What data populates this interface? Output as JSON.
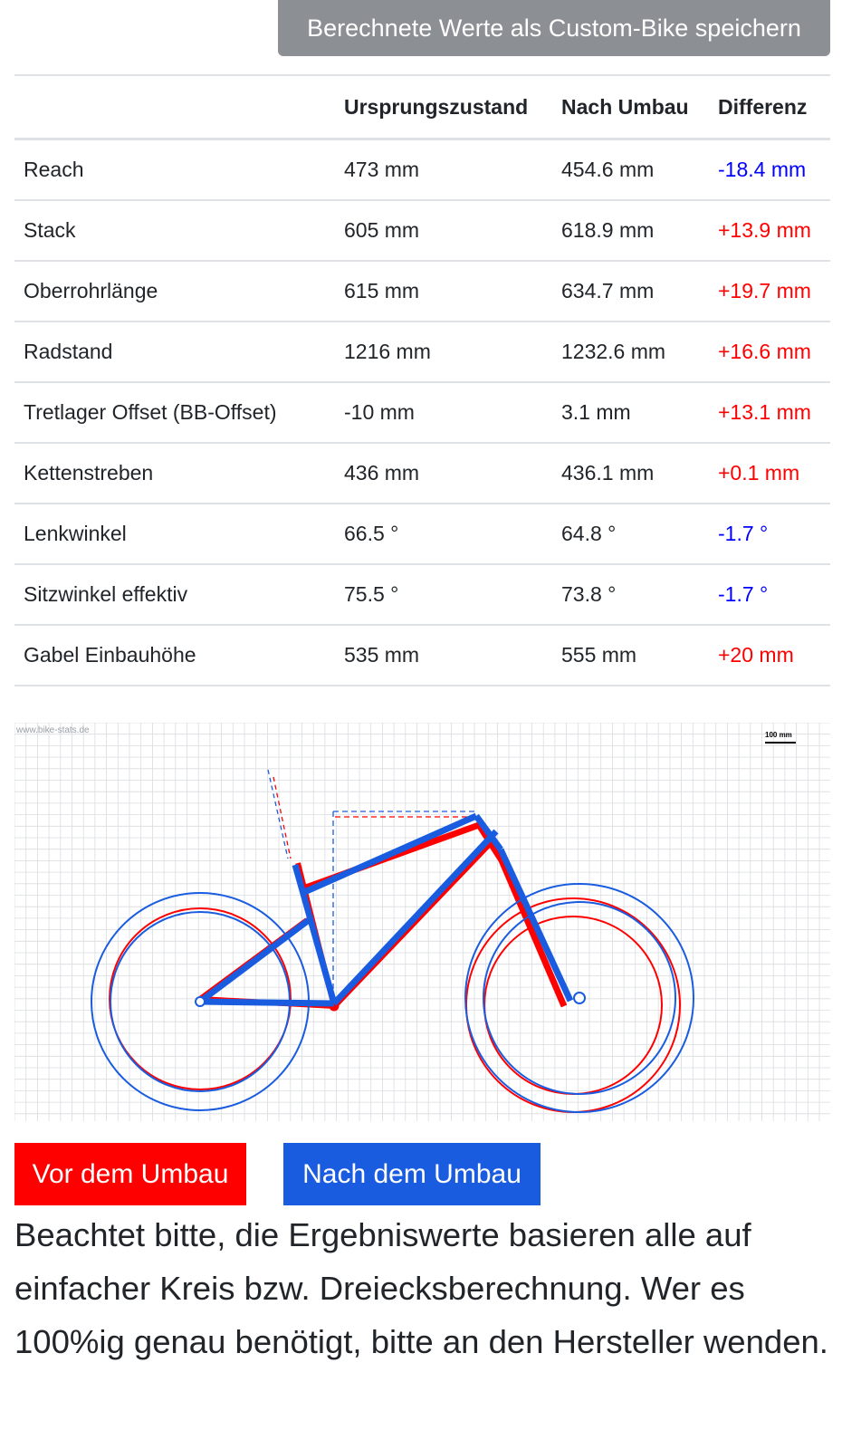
{
  "save_button": "Berechnete Werte als Custom-Bike speichern",
  "table": {
    "headers": [
      "",
      "Ursprungszustand",
      "Nach Umbau",
      "Differenz"
    ],
    "rows": [
      {
        "label": "Reach",
        "before": "473 mm",
        "after": "454.6 mm",
        "diff": "-18.4 mm",
        "sign": "neg"
      },
      {
        "label": "Stack",
        "before": "605 mm",
        "after": "618.9 mm",
        "diff": "+13.9 mm",
        "sign": "pos"
      },
      {
        "label": "Oberrohrlänge",
        "before": "615 mm",
        "after": "634.7 mm",
        "diff": "+19.7 mm",
        "sign": "pos"
      },
      {
        "label": "Radstand",
        "before": "1216 mm",
        "after": "1232.6 mm",
        "diff": "+16.6 mm",
        "sign": "pos"
      },
      {
        "label": "Tretlager Offset (BB-Offset)",
        "before": "-10 mm",
        "after": "3.1 mm",
        "diff": "+13.1 mm",
        "sign": "pos"
      },
      {
        "label": "Kettenstreben",
        "before": "436 mm",
        "after": "436.1 mm",
        "diff": "+0.1 mm",
        "sign": "pos"
      },
      {
        "label": "Lenkwinkel",
        "before": "66.5 °",
        "after": "64.8 °",
        "diff": "-1.7 °",
        "sign": "neg"
      },
      {
        "label": "Sitzwinkel effektiv",
        "before": "75.5 °",
        "after": "73.8 °",
        "diff": "-1.7 °",
        "sign": "neg"
      },
      {
        "label": "Gabel Einbauhöhe",
        "before": "535 mm",
        "after": "555 mm",
        "diff": "+20 mm",
        "sign": "pos"
      }
    ]
  },
  "drawing": {
    "watermark": "www.bike-stats.de",
    "scale_label": "100 mm",
    "colors": {
      "before": "#ff0000",
      "after": "#1a5ce0",
      "grid": "#d9dce0"
    }
  },
  "legend": {
    "before": "Vor dem Umbau",
    "after": "Nach dem Umbau"
  },
  "note": "Beachtet bitte, die Ergebniswerte basieren alle auf einfacher Kreis bzw. Dreiecksberechnung. Wer es 100%ig genau benötigt, bitte an den Hersteller wenden."
}
